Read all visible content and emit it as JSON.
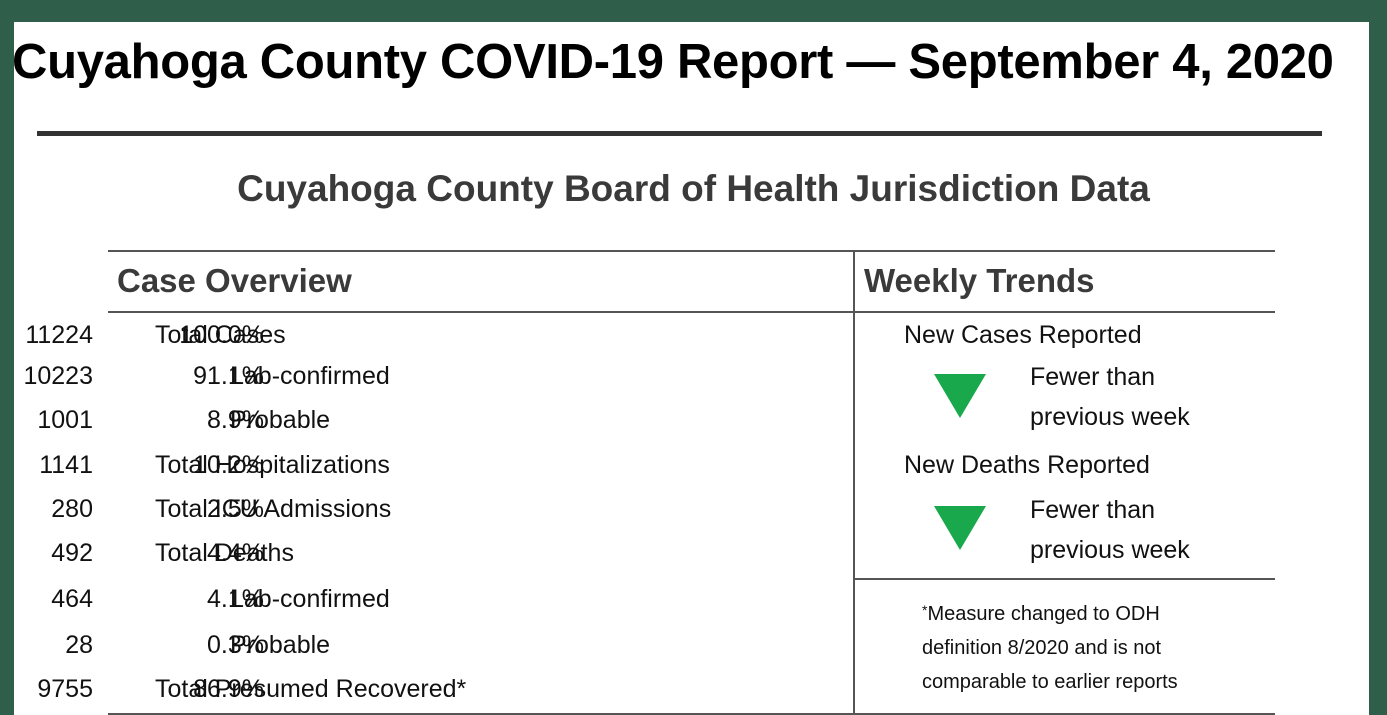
{
  "header": {
    "title": "Cuyahoga County COVID-19 Report — September 4, 2020",
    "subtitle": "Cuyahoga County Board of Health Jurisdiction Data"
  },
  "case_overview": {
    "heading": "Case Overview",
    "rows": [
      {
        "label": "Total Cases",
        "count": "11224",
        "percent": "100.0%",
        "indent": false
      },
      {
        "label": "Lab-confirmed",
        "count": "10223",
        "percent": "91.1%",
        "indent": true
      },
      {
        "label": "Probable",
        "count": "1001",
        "percent": "8.9%",
        "indent": true
      },
      {
        "label": "Total Hospitalizations",
        "count": "1141",
        "percent": "10.2%",
        "indent": false
      },
      {
        "label": "Total ICU Admissions",
        "count": "280",
        "percent": "2.5%",
        "indent": false
      },
      {
        "label": "Total Deaths",
        "count": "492",
        "percent": "4.4%",
        "indent": false
      },
      {
        "label": "Lab-confirmed",
        "count": "464",
        "percent": "4.1%",
        "indent": true
      },
      {
        "label": "Probable",
        "count": "28",
        "percent": "0.3%",
        "indent": true
      },
      {
        "label": "Total Presumed Recovered*",
        "count": "9755",
        "percent": "86.9%",
        "indent": false
      }
    ]
  },
  "weekly_trends": {
    "heading": "Weekly Trends",
    "items": [
      {
        "label": "New Cases Reported",
        "direction": "down",
        "line1": "Fewer than",
        "line2": "previous week",
        "color": "#19a84c"
      },
      {
        "label": "New Deaths Reported",
        "direction": "down",
        "line1": "Fewer than",
        "line2": "previous week",
        "color": "#19a84c"
      }
    ]
  },
  "footnote": {
    "marker": "*",
    "line1": "Measure changed to ODH",
    "line2": "definition 8/2020 and is not",
    "line3": "comparable to earlier reports"
  }
}
